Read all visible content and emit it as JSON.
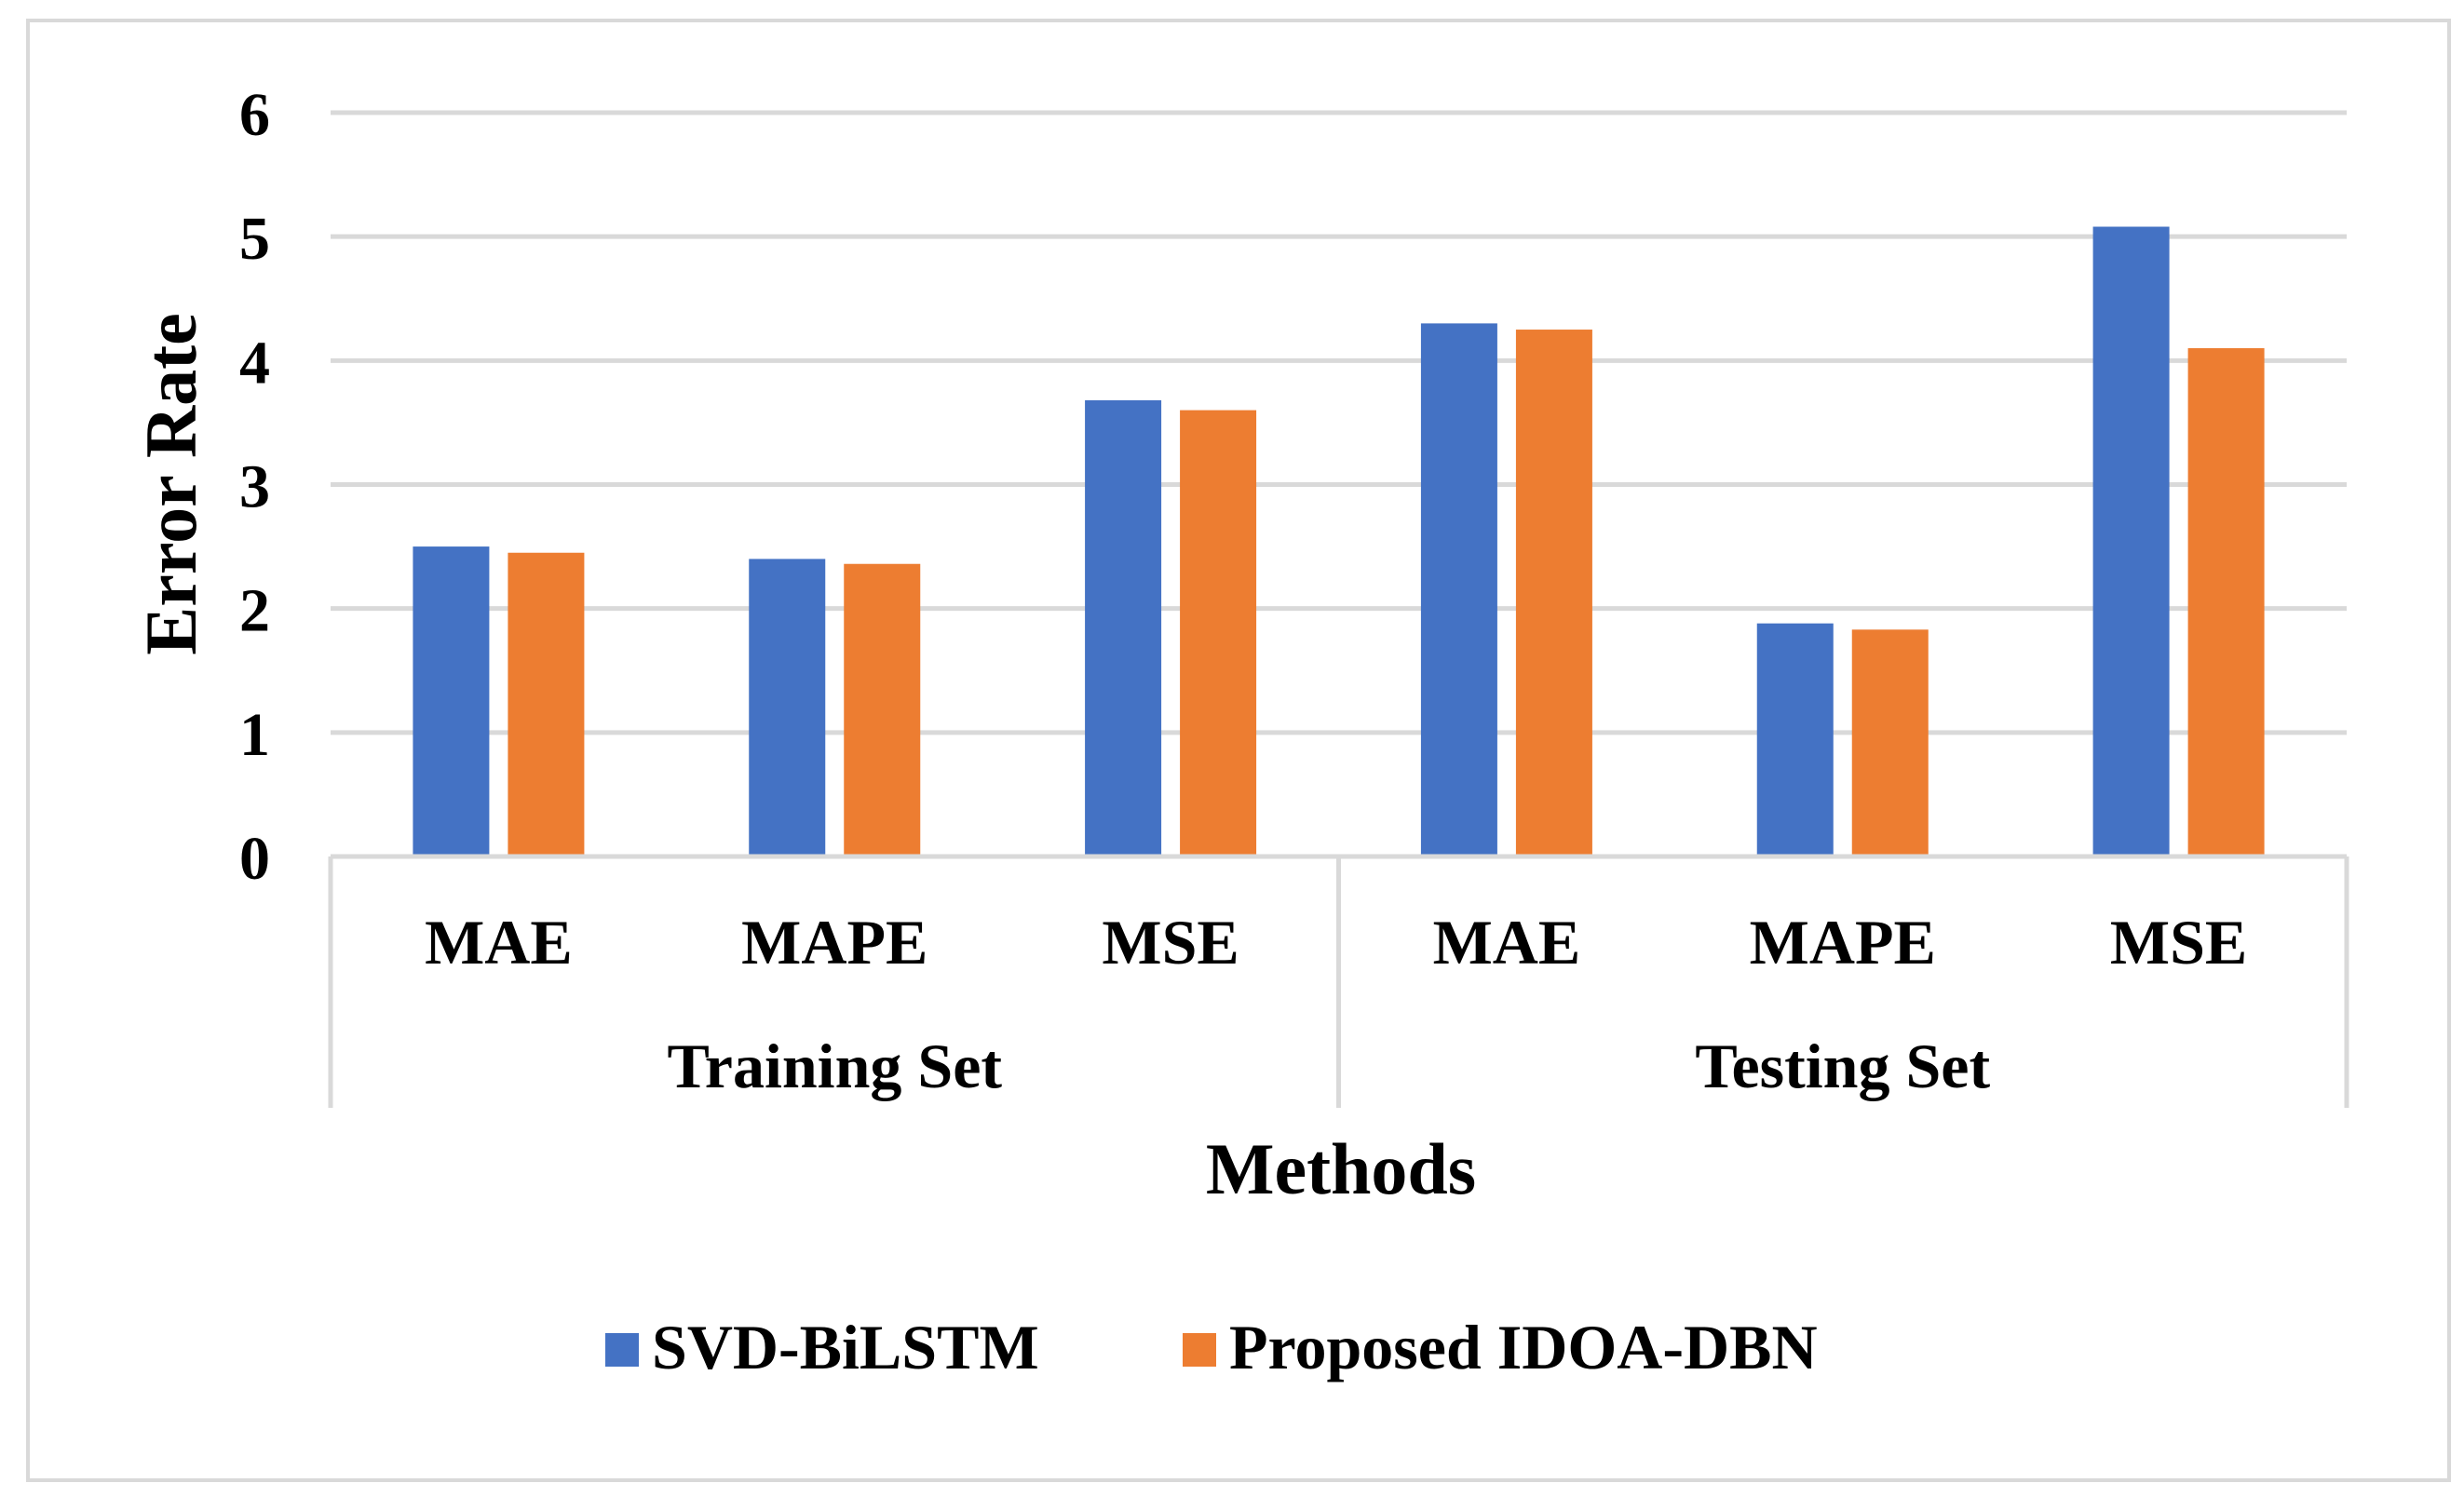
{
  "chart_data": {
    "type": "bar",
    "title": "",
    "xlabel": "Methods",
    "ylabel": "Error Rate",
    "ylim": [
      0,
      6
    ],
    "yticks": [
      "0",
      "1",
      "2",
      "3",
      "4",
      "5",
      "6"
    ],
    "groups": [
      {
        "label": "Training Set",
        "categories": [
          "MAE",
          "MAPE",
          "MSE"
        ]
      },
      {
        "label": "Testing Set",
        "categories": [
          "MAE",
          "MAPE",
          "MSE"
        ]
      }
    ],
    "categories": [
      "MAE",
      "MAPE",
      "MSE",
      "MAE",
      "MAPE",
      "MSE"
    ],
    "series": [
      {
        "name": "SVD-BiLSTM",
        "color": "#4472C4",
        "values": [
          2.5,
          2.4,
          3.68,
          4.3,
          1.88,
          5.08
        ]
      },
      {
        "name": "Proposed IDOA-DBN",
        "color": "#ED7D31",
        "values": [
          2.45,
          2.36,
          3.6,
          4.25,
          1.83,
          4.1
        ]
      }
    ],
    "grid": true,
    "legend": "bottom"
  }
}
